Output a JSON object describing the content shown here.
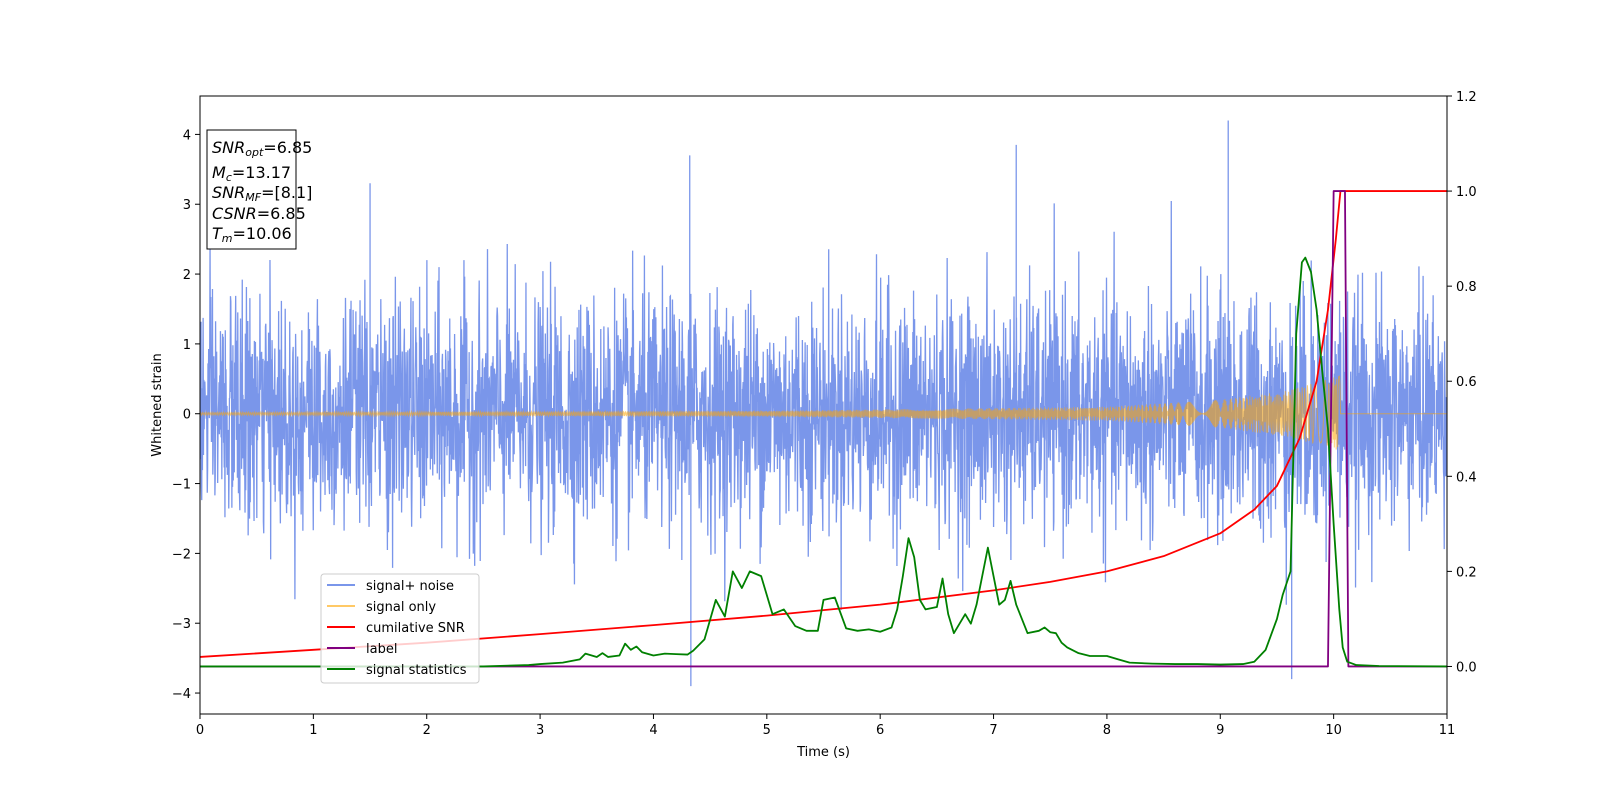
{
  "chart_data": {
    "type": "line",
    "xlabel": "Time (s)",
    "ylabel": "Whitened strain",
    "xlim": [
      0,
      11
    ],
    "ylim": [
      -4.3,
      4.55
    ],
    "y2lim": [
      -0.1,
      1.2
    ],
    "xticks": [
      "0",
      "1",
      "2",
      "3",
      "4",
      "5",
      "6",
      "7",
      "8",
      "9",
      "10",
      "11"
    ],
    "yticks": [
      "−4",
      "−3",
      "−2",
      "−1",
      "0",
      "1",
      "2",
      "3",
      "4"
    ],
    "y2ticks": [
      "0.0",
      "0.2",
      "0.4",
      "0.6",
      "0.8",
      "1.0",
      "1.2"
    ],
    "legend_position": "lower-left",
    "annotation": {
      "snr_opt": {
        "sym": "SNR",
        "sub": "opt",
        "val": "=6.85"
      },
      "mc": {
        "sym": "M",
        "sub": "c",
        "val": "=13.17"
      },
      "snr_mf": {
        "sym": "SNR",
        "sub": "MF",
        "val": "=[8.1]"
      },
      "csnr": {
        "sym": "CSNR",
        "sub": "",
        "val": "=6.85"
      },
      "tm": {
        "sym": "T",
        "sub": "m",
        "val": "=10.06"
      }
    },
    "series": [
      {
        "name": "signal+ noise",
        "color": "#4169e1",
        "axis": "left",
        "description": "white noise approx std 0.85 plus chirp",
        "peaks": [
          [
            1.5,
            3.3
          ],
          [
            4.33,
            -3.9
          ],
          [
            9.07,
            4.2
          ],
          [
            9.63,
            -3.8
          ],
          [
            7.2,
            3.85
          ],
          [
            4.32,
            3.7
          ]
        ]
      },
      {
        "name": "signal only",
        "color": "#ffa500",
        "axis": "left",
        "amplitude": [
          [
            0,
            0.02
          ],
          [
            5,
            0.04
          ],
          [
            8,
            0.1
          ],
          [
            9,
            0.2
          ],
          [
            9.6,
            0.33
          ],
          [
            10.06,
            0.55
          ]
        ],
        "end": 10.06
      },
      {
        "name": "cumilative SNR",
        "color": "#ff0000",
        "axis": "right",
        "x": [
          0,
          1,
          2,
          3,
          4,
          5,
          6,
          7,
          7.5,
          8,
          8.5,
          9,
          9.3,
          9.5,
          9.7,
          9.85,
          9.95,
          10.02,
          10.06,
          11
        ],
        "values": [
          0.02,
          0.035,
          0.05,
          0.068,
          0.087,
          0.107,
          0.13,
          0.16,
          0.178,
          0.2,
          0.232,
          0.28,
          0.33,
          0.38,
          0.48,
          0.6,
          0.75,
          0.9,
          1.0,
          1.0
        ]
      },
      {
        "name": "label",
        "color": "#800080",
        "axis": "right",
        "x": [
          0,
          9.95,
          10.0,
          10.06,
          10.1,
          10.13,
          11
        ],
        "values": [
          0,
          0,
          1.0,
          1.0,
          1.0,
          0,
          0
        ]
      },
      {
        "name": "signal statistics",
        "color": "#008000",
        "axis": "right",
        "x": [
          0,
          2.5,
          2.9,
          3.0,
          3.2,
          3.35,
          3.4,
          3.5,
          3.55,
          3.6,
          3.7,
          3.75,
          3.8,
          3.85,
          3.9,
          4.0,
          4.1,
          4.2,
          4.3,
          4.35,
          4.45,
          4.55,
          4.63,
          4.7,
          4.78,
          4.85,
          4.95,
          5.05,
          5.15,
          5.25,
          5.35,
          5.45,
          5.5,
          5.6,
          5.7,
          5.8,
          5.9,
          6.0,
          6.1,
          6.15,
          6.2,
          6.25,
          6.3,
          6.35,
          6.4,
          6.5,
          6.55,
          6.6,
          6.65,
          6.75,
          6.8,
          6.85,
          6.95,
          7.05,
          7.1,
          7.15,
          7.2,
          7.3,
          7.4,
          7.45,
          7.5,
          7.55,
          7.6,
          7.65,
          7.75,
          7.85,
          8.0,
          8.1,
          8.2,
          8.4,
          8.6,
          8.8,
          9.0,
          9.2,
          9.3,
          9.4,
          9.5,
          9.55,
          9.62,
          9.67,
          9.72,
          9.75,
          9.8,
          9.85,
          9.9,
          9.95,
          10.0,
          10.05,
          10.08,
          10.12,
          10.2,
          10.4,
          11
        ],
        "values": [
          0,
          0,
          0.003,
          0.005,
          0.008,
          0.015,
          0.027,
          0.02,
          0.028,
          0.02,
          0.023,
          0.048,
          0.035,
          0.042,
          0.03,
          0.023,
          0.027,
          0.026,
          0.025,
          0.033,
          0.057,
          0.14,
          0.105,
          0.2,
          0.165,
          0.2,
          0.19,
          0.11,
          0.12,
          0.085,
          0.075,
          0.075,
          0.14,
          0.145,
          0.08,
          0.075,
          0.078,
          0.073,
          0.082,
          0.12,
          0.19,
          0.27,
          0.23,
          0.14,
          0.12,
          0.125,
          0.185,
          0.11,
          0.07,
          0.11,
          0.09,
          0.13,
          0.25,
          0.13,
          0.14,
          0.18,
          0.13,
          0.07,
          0.075,
          0.082,
          0.072,
          0.07,
          0.05,
          0.04,
          0.028,
          0.022,
          0.022,
          0.015,
          0.008,
          0.006,
          0.005,
          0.005,
          0.004,
          0.005,
          0.01,
          0.035,
          0.1,
          0.15,
          0.2,
          0.7,
          0.85,
          0.86,
          0.83,
          0.75,
          0.62,
          0.5,
          0.3,
          0.12,
          0.04,
          0.01,
          0.003,
          0.001,
          0
        ]
      }
    ]
  }
}
